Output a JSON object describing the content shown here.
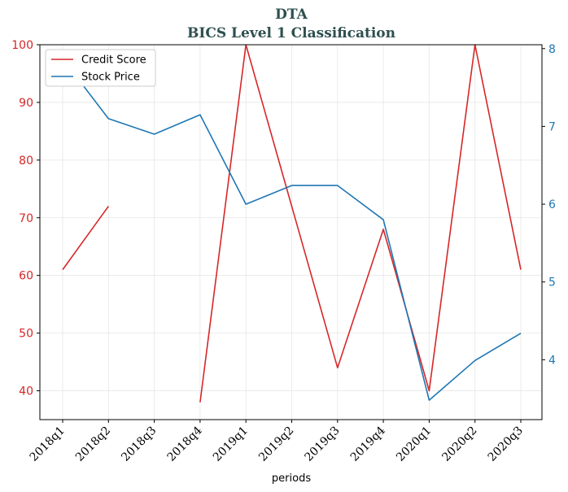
{
  "chart_data": {
    "type": "line",
    "title": "DTA",
    "subtitle": "BICS Level 1 Classification",
    "xlabel": "periods",
    "categories": [
      "2018q1",
      "2018q2",
      "2018q3",
      "2018q4",
      "2019q1",
      "2019q2",
      "2019q3",
      "2019q4",
      "2020q1",
      "2020q2",
      "2020q3"
    ],
    "y_left": {
      "ylim": [
        35,
        100
      ],
      "ticks": [
        40,
        50,
        60,
        70,
        80,
        90,
        100
      ],
      "color": "#d62728"
    },
    "y_right": {
      "ylim": [
        3.23,
        8.05
      ],
      "ticks": [
        4,
        5,
        6,
        7,
        8
      ],
      "color": "#1f77b4"
    },
    "grid": true,
    "legend_position": "top-left",
    "series": [
      {
        "name": "Credit Score",
        "axis": "left",
        "color": "#d62728",
        "values": [
          61,
          72,
          null,
          38,
          100,
          72,
          44,
          68,
          40,
          100,
          61
        ]
      },
      {
        "name": "Stock Price",
        "axis": "right",
        "color": "#1f77b4",
        "values": [
          7.87,
          7.1,
          6.9,
          7.15,
          6.0,
          6.24,
          6.24,
          5.8,
          3.48,
          3.99,
          4.34
        ]
      }
    ]
  }
}
